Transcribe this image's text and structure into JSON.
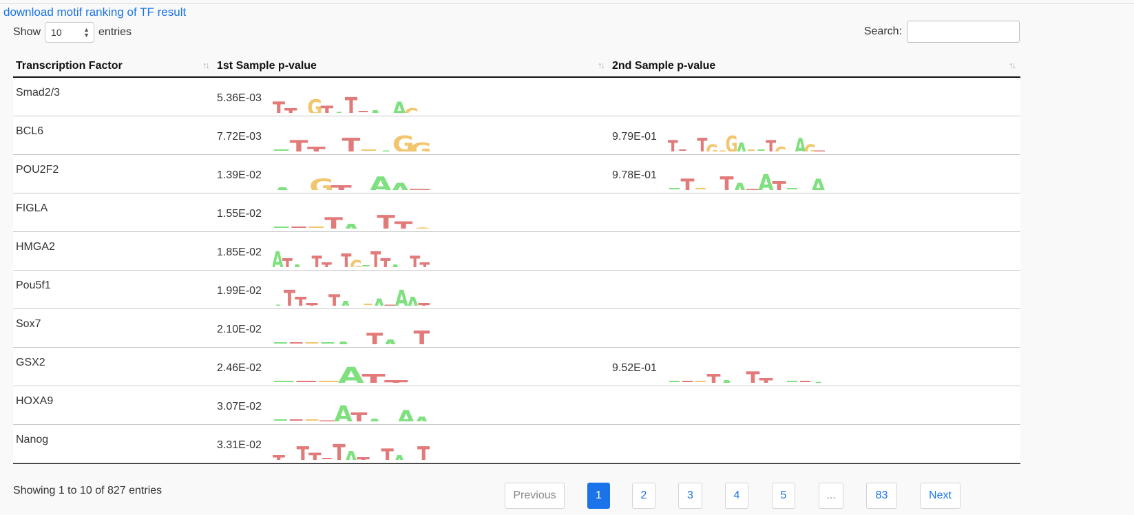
{
  "download_link": "download motif ranking of TF result",
  "length": {
    "show": "Show",
    "value": "10",
    "entries": "entries"
  },
  "search": {
    "label": "Search:",
    "value": ""
  },
  "columns": [
    "Transcription Factor",
    "1st Sample p-value",
    "2nd Sample p-value"
  ],
  "rows": [
    {
      "tf": "Smad2/3",
      "p1": "5.36E-03",
      "logo1": [
        "T",
        "T",
        "T",
        "G",
        "T",
        "A",
        "T",
        "",
        "A",
        "A",
        "A",
        "G",
        "A"
      ],
      "p2": "",
      "logo2": []
    },
    {
      "tf": "BCL6",
      "p1": "7.72E-03",
      "logo1": [
        "",
        "T",
        "T",
        "T",
        "T",
        "",
        "A",
        "G",
        "G"
      ],
      "p2": "9.79E-01",
      "logo2": [
        "T",
        "",
        "T",
        "T",
        "G",
        "G",
        "G",
        "A",
        "",
        "",
        "T",
        "G",
        "T",
        "A",
        "G",
        "T"
      ]
    },
    {
      "tf": "POU2F2",
      "p1": "1.39E-02",
      "logo1": [
        "A",
        "T",
        "G",
        "T",
        "A",
        "A",
        "A",
        "T"
      ],
      "p2": "9.78E-01",
      "logo2": [
        "",
        "T",
        "",
        "A",
        "T",
        "A",
        "T",
        "A",
        "T",
        "",
        "T",
        "A"
      ]
    },
    {
      "tf": "FIGLA",
      "p1": "1.55E-02",
      "logo1": [
        "",
        "",
        "",
        "T",
        "A",
        "T",
        "T",
        "T",
        "G"
      ],
      "p2": "",
      "logo2": []
    },
    {
      "tf": "HMGA2",
      "p1": "1.85E-02",
      "logo1": [
        "A",
        "T",
        "A",
        "T",
        "T",
        "T",
        "G",
        "T",
        "G",
        "",
        "T",
        "T",
        "A",
        "A",
        "T",
        "T"
      ],
      "p2": "",
      "logo2": []
    },
    {
      "tf": "Pou5f1",
      "p1": "1.99E-02",
      "logo1": [
        "A",
        "T",
        "T",
        "T",
        "G",
        "T",
        "A",
        "T",
        "",
        "A",
        "T",
        "A",
        "A",
        "T"
      ],
      "p2": "",
      "logo2": []
    },
    {
      "tf": "Sox7",
      "p1": "2.10E-02",
      "logo1": [
        "",
        "",
        "",
        "",
        "A",
        "A",
        "T",
        "A",
        "A",
        "T"
      ],
      "p2": "",
      "logo2": []
    },
    {
      "tf": "GSX2",
      "p1": "2.46E-02",
      "logo1": [
        "",
        "",
        "",
        "A",
        "T",
        "T",
        "A"
      ],
      "p2": "9.52E-01",
      "logo2": [
        "",
        "",
        "",
        "T",
        "A",
        "A",
        "T",
        "T",
        "A",
        "",
        "",
        "A"
      ]
    },
    {
      "tf": "HOXA9",
      "p1": "3.07E-02",
      "logo1": [
        "",
        "",
        "",
        "T",
        "A",
        "T",
        "A",
        "A",
        "A",
        "A"
      ],
      "p2": "",
      "logo2": []
    },
    {
      "tf": "Nanog",
      "p1": "3.31E-02",
      "logo1": [
        "T",
        "T",
        "T",
        "T",
        "",
        "T",
        "A",
        "T",
        "G",
        "T",
        "A",
        "A",
        "T"
      ],
      "p2": "",
      "logo2": []
    }
  ],
  "info": "Showing 1 to 10 of 827 entries",
  "pagination": {
    "previous": "Previous",
    "pages": [
      "1",
      "2",
      "3",
      "4",
      "5",
      "...",
      "83"
    ],
    "next": "Next",
    "active": "1"
  },
  "colors": {
    "A": "#7fe07f",
    "T": "#e27a7a",
    "G": "#f2c66e",
    "C": "#8ab4f8",
    "link": "#1a73e8"
  }
}
